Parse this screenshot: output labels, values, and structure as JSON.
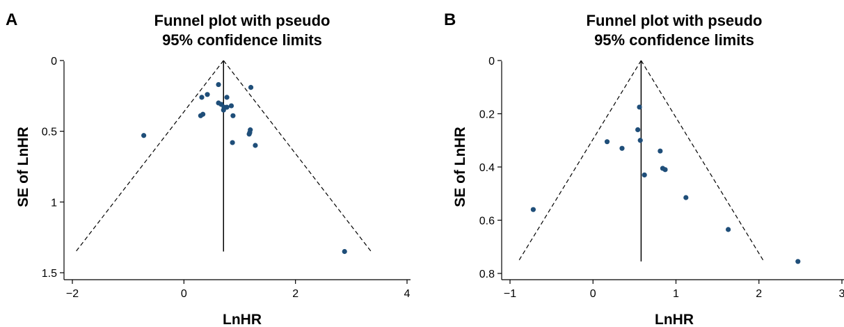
{
  "chart_data": [
    {
      "type": "scatter",
      "panel_label": "A",
      "title": [
        "Funnel plot with pseudo",
        "95% confidence limits"
      ],
      "xlabel": "LnHR",
      "ylabel": "SE of LnHR",
      "xlim": [
        -2,
        4
      ],
      "ylim": [
        0,
        1.5
      ],
      "y_reversed": true,
      "xticks": [
        -2,
        0,
        2,
        4
      ],
      "xtick_labels": [
        "−2",
        "0",
        "2",
        "4"
      ],
      "yticks": [
        0,
        0.5,
        1,
        1.5
      ],
      "ytick_labels": [
        "0",
        "0.5",
        "1",
        "1.5"
      ],
      "grid": false,
      "pooled_estimate": 0.71,
      "funnel_max_se": 1.35,
      "marker_color": "#1f4e79",
      "points": [
        {
          "x": -0.72,
          "y": 0.53
        },
        {
          "x": 0.3,
          "y": 0.39
        },
        {
          "x": 0.34,
          "y": 0.38
        },
        {
          "x": 0.32,
          "y": 0.26
        },
        {
          "x": 0.42,
          "y": 0.24
        },
        {
          "x": 0.62,
          "y": 0.17
        },
        {
          "x": 0.62,
          "y": 0.3
        },
        {
          "x": 0.67,
          "y": 0.31
        },
        {
          "x": 0.72,
          "y": 0.33
        },
        {
          "x": 0.71,
          "y": 0.35
        },
        {
          "x": 0.77,
          "y": 0.33
        },
        {
          "x": 0.77,
          "y": 0.26
        },
        {
          "x": 0.85,
          "y": 0.32
        },
        {
          "x": 0.88,
          "y": 0.39
        },
        {
          "x": 0.87,
          "y": 0.58
        },
        {
          "x": 1.2,
          "y": 0.19
        },
        {
          "x": 1.19,
          "y": 0.49
        },
        {
          "x": 1.18,
          "y": 0.51
        },
        {
          "x": 1.17,
          "y": 0.52
        },
        {
          "x": 1.28,
          "y": 0.6
        },
        {
          "x": 2.88,
          "y": 1.35
        }
      ]
    },
    {
      "type": "scatter",
      "panel_label": "B",
      "title": [
        "Funnel plot with pseudo",
        "95% confidence limits"
      ],
      "xlabel": "LnHR",
      "ylabel": "SE of LnHR",
      "xlim": [
        -1,
        3
      ],
      "ylim": [
        0,
        0.8
      ],
      "y_reversed": true,
      "xticks": [
        -1,
        0,
        1,
        2,
        3
      ],
      "xtick_labels": [
        "−1",
        "0",
        "1",
        "2",
        "3"
      ],
      "yticks": [
        0,
        0.2,
        0.4,
        0.6,
        0.8
      ],
      "ytick_labels": [
        "0",
        "0.2",
        "0.4",
        "0.6",
        "0.8"
      ],
      "grid": false,
      "pooled_estimate": 0.58,
      "funnel_max_se": 0.755,
      "marker_color": "#1f4e79",
      "points": [
        {
          "x": -0.72,
          "y": 0.56
        },
        {
          "x": 0.17,
          "y": 0.305
        },
        {
          "x": 0.35,
          "y": 0.33
        },
        {
          "x": 0.54,
          "y": 0.26
        },
        {
          "x": 0.56,
          "y": 0.175
        },
        {
          "x": 0.57,
          "y": 0.3
        },
        {
          "x": 0.62,
          "y": 0.43
        },
        {
          "x": 0.81,
          "y": 0.34
        },
        {
          "x": 0.84,
          "y": 0.405
        },
        {
          "x": 0.87,
          "y": 0.41
        },
        {
          "x": 1.12,
          "y": 0.515
        },
        {
          "x": 1.63,
          "y": 0.635
        },
        {
          "x": 2.47,
          "y": 0.755
        }
      ]
    }
  ]
}
